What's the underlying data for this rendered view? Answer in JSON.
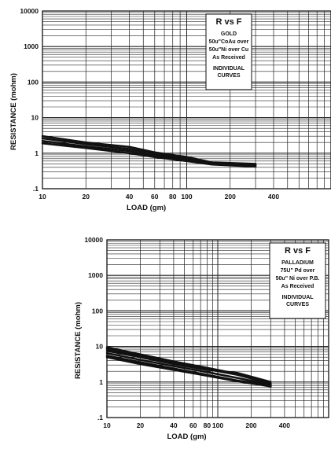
{
  "chart_data": [
    {
      "type": "line",
      "xscale": "log",
      "yscale": "log",
      "xlim": [
        10,
        1000
      ],
      "ylim": [
        0.1,
        10000
      ],
      "grid": true,
      "legend_position": "top-right",
      "xlabel": "LOAD (gm)",
      "ylabel": "RESISTANCE (mohm)",
      "x_tick_labels": [
        "10",
        "20",
        "40",
        "60",
        "80",
        "100",
        "200",
        "400"
      ],
      "x_tick_values": [
        10,
        20,
        40,
        60,
        80,
        100,
        200,
        400
      ],
      "y_tick_labels": [
        ".1",
        "1",
        "10",
        "100",
        "1000",
        "10000"
      ],
      "y_tick_values": [
        0.1,
        1,
        10,
        100,
        1000,
        10000
      ],
      "legend_lines": [
        "R vs F",
        "GOLD",
        "50u\"CoAu over",
        "50u\"Ni over Cu",
        "As Received",
        "INDIVIDUAL",
        "CURVES"
      ],
      "band_color": "#111111",
      "series": [
        {
          "x": [
            10,
            20,
            40,
            60,
            100,
            150,
            300
          ],
          "y": [
            3.0,
            2.0,
            1.5,
            1.05,
            0.78,
            0.55,
            0.5
          ]
        },
        {
          "x": [
            10,
            20,
            40,
            60,
            100,
            150,
            300
          ],
          "y": [
            2.6,
            1.8,
            1.3,
            0.95,
            0.72,
            0.52,
            0.47
          ]
        },
        {
          "x": [
            10,
            20,
            40,
            60,
            100,
            150,
            300
          ],
          "y": [
            2.2,
            1.55,
            1.15,
            0.85,
            0.65,
            0.5,
            0.45
          ]
        },
        {
          "x": [
            10,
            20,
            40,
            60,
            100,
            150,
            300
          ],
          "y": [
            1.9,
            1.4,
            1.0,
            0.78,
            0.6,
            0.48,
            0.42
          ]
        }
      ]
    },
    {
      "type": "line",
      "xscale": "log",
      "yscale": "log",
      "xlim": [
        10,
        1000
      ],
      "ylim": [
        0.1,
        10000
      ],
      "grid": true,
      "legend_position": "top-right",
      "xlabel": "LOAD (gm)",
      "ylabel": "RESISTANCE (mohm)",
      "x_tick_labels": [
        "10",
        "20",
        "40",
        "60",
        "80",
        "100",
        "200",
        "400"
      ],
      "x_tick_values": [
        10,
        20,
        40,
        60,
        80,
        100,
        200,
        400
      ],
      "y_tick_labels": [
        ".1",
        "1",
        "10",
        "100",
        "1000",
        "10000"
      ],
      "y_tick_values": [
        0.1,
        1,
        10,
        100,
        1000,
        10000
      ],
      "legend_lines": [
        "R vs F",
        "PALLADIUM",
        "75U\" Pd over",
        "50u\" Ni over P.B.",
        "As Received",
        "INDIVIDUAL",
        "CURVES"
      ],
      "band_color": "#111111",
      "series": [
        {
          "x": [
            10,
            20,
            40,
            80,
            150,
            300
          ],
          "y": [
            9.5,
            6.0,
            3.8,
            2.5,
            1.7,
            0.9
          ]
        },
        {
          "x": [
            10,
            20,
            40,
            80,
            150,
            300
          ],
          "y": [
            8.5,
            5.5,
            3.5,
            2.3,
            1.6,
            0.9
          ]
        },
        {
          "x": [
            10,
            20,
            40,
            80,
            150,
            300
          ],
          "y": [
            7.5,
            5.0,
            3.2,
            2.2,
            1.8,
            1.0
          ]
        },
        {
          "x": [
            10,
            20,
            40,
            80,
            150,
            300
          ],
          "y": [
            6.5,
            4.2,
            2.8,
            1.9,
            1.3,
            0.85
          ]
        },
        {
          "x": [
            10,
            20,
            40,
            80,
            150,
            300
          ],
          "y": [
            5.5,
            3.6,
            2.4,
            1.6,
            1.1,
            0.8
          ]
        },
        {
          "x": [
            10,
            20,
            40,
            80,
            150,
            300
          ],
          "y": [
            5.0,
            3.2,
            2.2,
            1.5,
            1.05,
            0.75
          ]
        }
      ]
    }
  ]
}
